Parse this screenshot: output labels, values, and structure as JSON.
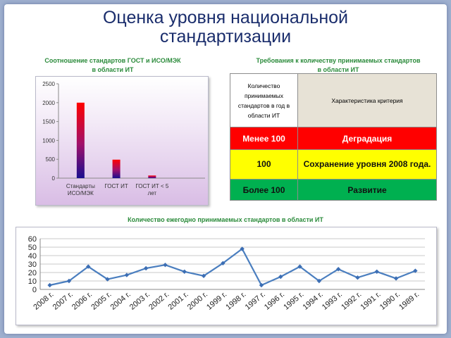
{
  "slide": {
    "title_line1": "Оценка уровня национальной",
    "title_line2": "стандартизации"
  },
  "bar_section": {
    "title_line1": "Соотношение стандартов ГОСТ и ИСО/МЭК",
    "title_line2": "в области ИТ"
  },
  "table_section": {
    "title_line1": "Требования к количеству принимаемых стандартов",
    "title_line2": "в области ИТ",
    "header_left": [
      "Количество",
      "принимаемых",
      "стандартов в год в",
      "области ИТ"
    ],
    "header_right": "Характеристика критерия",
    "rows": [
      {
        "left": "Менее 100",
        "right": "Деградация",
        "color": "#ff0000"
      },
      {
        "left": "100",
        "right": "Сохранение уровня 2008 года.",
        "color": "#ffff00"
      },
      {
        "left": "Более 100",
        "right": "Развитие",
        "color": "#00b050"
      }
    ]
  },
  "line_section": {
    "title": "Количество ежегодно принимаемых стандартов в области ИТ"
  },
  "chart_data": [
    {
      "type": "bar",
      "title": "Соотношение стандартов ГОСТ и ИСО/МЭК в области ИТ",
      "categories": [
        [
          "Стандарты",
          "ИСО/МЭК"
        ],
        [
          "ГОСТ  ИТ"
        ],
        [
          "ГОСТ ИТ < 5",
          "лет"
        ]
      ],
      "values": [
        2000,
        490,
        70
      ],
      "ylim": [
        0,
        2500
      ],
      "yticks": [
        0,
        500,
        1000,
        1500,
        2000,
        2500
      ],
      "grid": false,
      "legend": "none",
      "colors": {
        "top": "#ff0000",
        "bottom": "#1a0f8f"
      }
    },
    {
      "type": "line",
      "title": "Количество ежегодно принимаемых стандартов в области ИТ",
      "categories": [
        "2008 г.",
        "2007 г.",
        "2006 г.",
        "2005 г.",
        "2004 г.",
        "2003 г.",
        "2002 г.",
        "2001 г.",
        "2000 г.",
        "1999 г.",
        "1998 г.",
        "1997 г.",
        "1996 г.",
        "1995 г.",
        "1994 г.",
        "1993 г.",
        "1992 г.",
        "1991 г.",
        "1990 г.",
        "1989 г."
      ],
      "values": [
        5,
        10,
        27,
        12,
        17,
        25,
        29,
        21,
        16,
        31,
        48,
        5,
        15,
        27,
        10,
        24,
        14,
        21,
        13,
        22
      ],
      "ylim": [
        0,
        60
      ],
      "yticks": [
        0,
        10,
        20,
        30,
        40,
        50,
        60
      ],
      "grid": true,
      "legend": "none",
      "colors": {
        "line": "#4a7ebf",
        "marker": "#3c6eb4"
      }
    }
  ]
}
